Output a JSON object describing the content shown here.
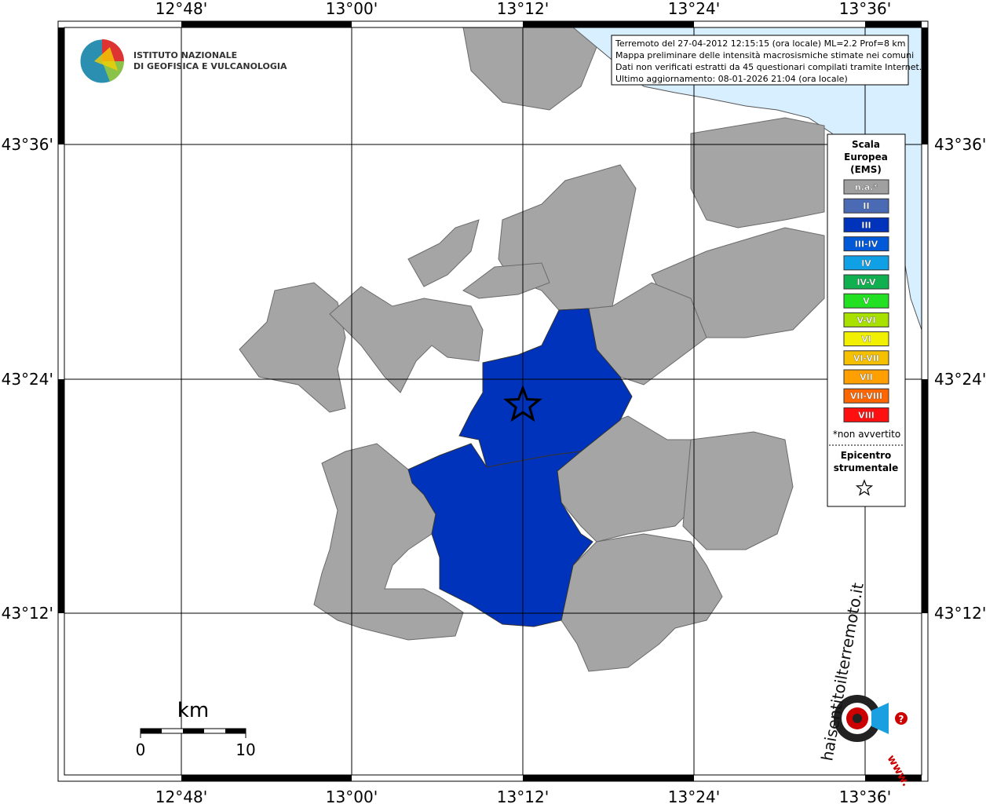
{
  "lon_labels": [
    "12°48'",
    "13°00'",
    "13°12'",
    "13°24'",
    "13°36'"
  ],
  "lat_labels": [
    "43°36'",
    "43°24'",
    "43°12'"
  ],
  "info": [
    "Terremoto del 27-04-2012 12:15:15 (ora locale) ML=2.2 Prof=8 km",
    "Mappa preliminare delle intensità macrosismiche stimate nei comuni",
    "Dati non verificati estratti da 45 questionari compilati tramite Internet.",
    "Ultimo aggiornamento: 08-01-2026 21:04 (ora locale)"
  ],
  "legend": {
    "title": [
      "Scala",
      "Europea",
      "(EMS)"
    ],
    "items": [
      {
        "label": "n.a.*",
        "color": "#a0a0a0"
      },
      {
        "label": "II",
        "color": "#4a6ab4"
      },
      {
        "label": "III",
        "color": "#0033bb"
      },
      {
        "label": "III-IV",
        "color": "#0059d9"
      },
      {
        "label": "IV",
        "color": "#0fa0e6"
      },
      {
        "label": "IV-V",
        "color": "#10b050"
      },
      {
        "label": "V",
        "color": "#22e022"
      },
      {
        "label": "V-VI",
        "color": "#a8e000"
      },
      {
        "label": "VI",
        "color": "#f0f000"
      },
      {
        "label": "VI-VII",
        "color": "#f5c000"
      },
      {
        "label": "VII",
        "color": "#ffa000"
      },
      {
        "label": "VII-VIII",
        "color": "#ff6600"
      },
      {
        "label": "VIII",
        "color": "#ff1010"
      }
    ],
    "note": "*non avvertito",
    "epicenter": [
      "Epicentro",
      "strumentale"
    ]
  },
  "scale": {
    "unit": "km",
    "labels": [
      "0",
      "10"
    ]
  },
  "logos": {
    "ingv": [
      "ISTITUTO NAZIONALE",
      "DI GEOFISICA E VULCANOLOGIA"
    ],
    "site": [
      "haisentitoilterremoto.it",
      "www.",
      "?"
    ]
  }
}
